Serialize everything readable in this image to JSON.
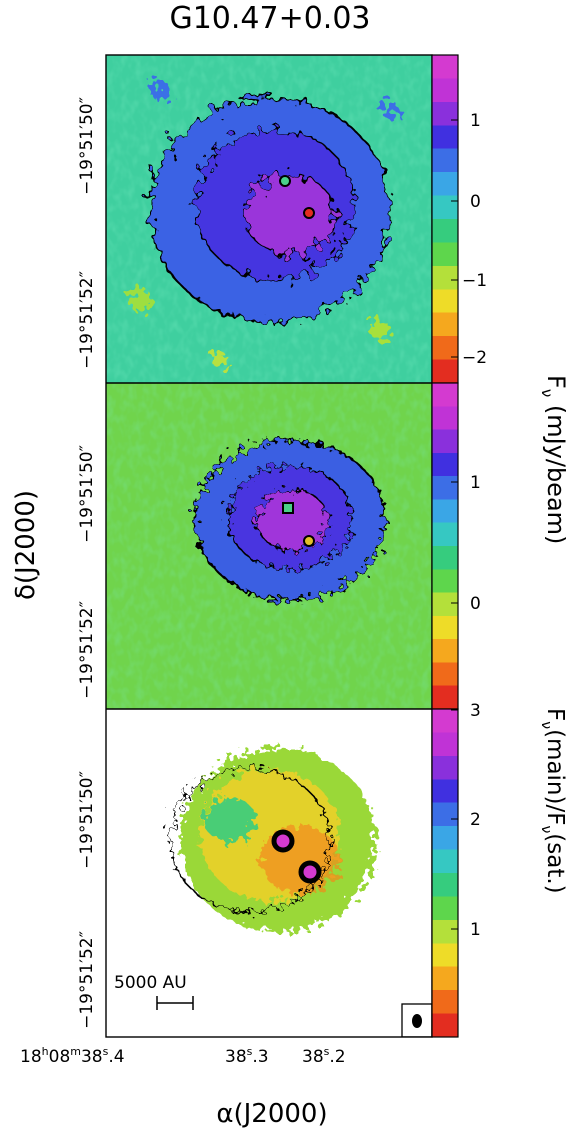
{
  "title": "G10.47+0.03",
  "panels": [
    {
      "id": "top",
      "colorbar": {
        "label_main": "F",
        "label_sub": "ν",
        "label_rest": " (mJy/beam)",
        "ticks": [
          "1",
          "0",
          "−1",
          "−2"
        ],
        "colormap": [
          "#e32d20",
          "#f06a1a",
          "#f5a81e",
          "#eedc28",
          "#b4e03a",
          "#5ed64c",
          "#36cc7e",
          "#36c8c2",
          "#3aa6e6",
          "#3c6ee6",
          "#4030e0",
          "#8a30dc",
          "#c033d6",
          "#d43ad0"
        ]
      },
      "yticks": [
        "−19°51′50″",
        "−19°51′52″"
      ]
    },
    {
      "id": "middle",
      "colorbar": {
        "ticks": [
          "1",
          "0"
        ],
        "colormap": [
          "#e32d20",
          "#f06a1a",
          "#f5a81e",
          "#eedc28",
          "#b4e03a",
          "#5ed64c",
          "#36cc7e",
          "#36c8c2",
          "#3aa6e6",
          "#3c6ee6",
          "#4030e0",
          "#8a30dc",
          "#c033d6",
          "#d43ad0"
        ]
      },
      "yticks": [
        "−19°51′50″",
        "−19°51′52″"
      ]
    },
    {
      "id": "bottom",
      "colorbar": {
        "label_main": "F",
        "label_sub": "ν",
        "label_rest": "(main)/F",
        "label_sub2": "ν",
        "label_rest2": "(sat.)",
        "ticks": [
          "3",
          "2",
          "1"
        ],
        "colormap": [
          "#e32d20",
          "#f06a1a",
          "#f5a81e",
          "#eedc28",
          "#b4e03a",
          "#5ed64c",
          "#36cc7e",
          "#36c8c2",
          "#3aa6e6",
          "#3c6ee6",
          "#4030e0",
          "#8a30dc",
          "#c033d6",
          "#d43ad0"
        ]
      },
      "yticks": [
        "−19°51′50″",
        "−19°51′52″"
      ],
      "scalebar_label": "5000 AU"
    }
  ],
  "x_axis": {
    "label": "α(J2000)",
    "ticks": [
      "18h08m38s.4",
      "38s.3",
      "38s.2"
    ]
  },
  "y_axis": {
    "label": "δ(J2000)"
  }
}
